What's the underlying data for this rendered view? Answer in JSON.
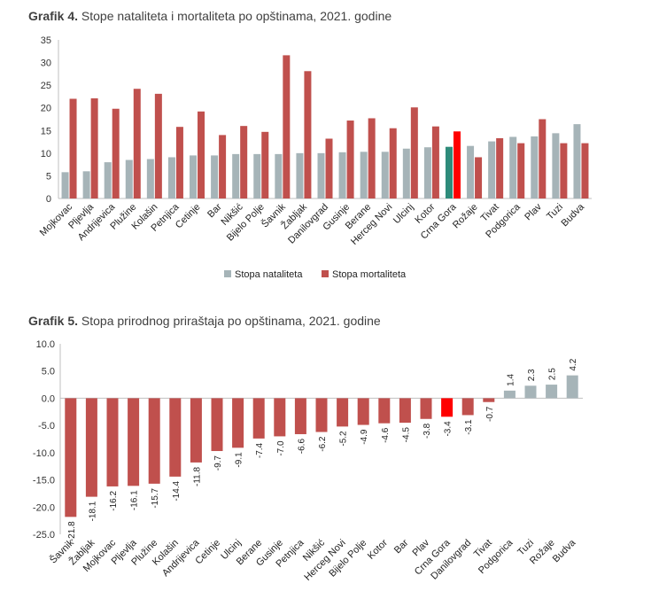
{
  "chart_data": [
    {
      "type": "bar",
      "title_prefix": "Grafik 4.",
      "title": "Stope nataliteta i mortaliteta po opštinama, 2021. godine",
      "categories": [
        "Mojkovac",
        "Pljevlja",
        "Andrijevica",
        "Plužine",
        "Kolašin",
        "Petnjica",
        "Cetinje",
        "Bar",
        "Nikšić",
        "Bijelo Polje",
        "Šavnik",
        "Žabljak",
        "Danilovgrad",
        "Gusinje",
        "Berane",
        "Herceg Novi",
        "Ulcinj",
        "Kotor",
        "Crna Gora",
        "Rožaje",
        "Tivat",
        "Podgorica",
        "Plav",
        "Tuzi",
        "Budva"
      ],
      "series": [
        {
          "name": "Stopa nataliteta",
          "color": "#a6b4b8",
          "values": [
            5.8,
            6.0,
            8.0,
            8.5,
            8.7,
            9.1,
            9.5,
            9.5,
            9.8,
            9.8,
            9.8,
            10.0,
            10.0,
            10.2,
            10.3,
            10.3,
            11.0,
            11.3,
            11.4,
            11.6,
            12.6,
            13.6,
            13.7,
            14.4,
            16.4
          ]
        },
        {
          "name": "Stopa mortaliteta",
          "color": "#c0504d",
          "values": [
            22.0,
            22.1,
            19.8,
            24.2,
            23.1,
            15.8,
            19.2,
            14.0,
            16.0,
            14.7,
            31.6,
            28.1,
            13.2,
            17.2,
            17.7,
            15.5,
            20.1,
            15.9,
            14.8,
            9.1,
            13.3,
            12.2,
            17.5,
            12.2,
            12.2
          ]
        }
      ],
      "highlight_category": "Crna Gora",
      "highlight_colors": {
        "natalitet": "#2e8b7a",
        "mortalitet": "#ff0000"
      },
      "yticks": [
        "0",
        "5",
        "10",
        "15",
        "20",
        "25",
        "30",
        "35"
      ],
      "ylim": [
        0,
        35
      ],
      "grid": false,
      "legend_position": "bottom"
    },
    {
      "type": "bar",
      "title_prefix": "Grafik 5.",
      "title": "Stopa prirodnog priraštaja po opštinama, 2021. godine",
      "categories": [
        "Šavnik",
        "Žabljak",
        "Mojkovac",
        "Pljevlja",
        "Plužine",
        "Kolašin",
        "Andrijevica",
        "Cetinje",
        "Ulcinj",
        "Berane",
        "Gusinje",
        "Petnjica",
        "Nikšić",
        "Herceg Novi",
        "Bijelo Polje",
        "Kotor",
        "Bar",
        "Plav",
        "Crna Gora",
        "Danilovgrad",
        "Tivat",
        "Podgorica",
        "Tuzi",
        "Rožaje",
        "Budva"
      ],
      "values": [
        -21.8,
        -18.1,
        -16.2,
        -16.1,
        -15.7,
        -14.4,
        -11.8,
        -9.7,
        -9.1,
        -7.4,
        -7.0,
        -6.6,
        -6.2,
        -5.2,
        -4.9,
        -4.6,
        -4.5,
        -3.8,
        -3.4,
        -3.1,
        -0.7,
        1.4,
        2.3,
        2.5,
        4.2
      ],
      "data_labels": [
        "-21.8",
        "-18.1",
        "-16.2",
        "-16.1",
        "-15.7",
        "-14.4",
        "-11.8",
        "-9.7",
        "-9.1",
        "-7.4",
        "-7.0",
        "-6.6",
        "-6.2",
        "-5.2",
        "-4.9",
        "-4.6",
        "-4.5",
        "-3.8",
        "-3.4",
        "-3.1",
        "-0.7",
        "1.4",
        "2.3",
        "2.5",
        "4.2"
      ],
      "colors": {
        "negative": "#c0504d",
        "positive": "#a6b4b8",
        "highlight": "#ff0000"
      },
      "highlight_category": "Crna Gora",
      "yticks": [
        "10.0",
        "5.0",
        "0.0",
        "-5.0",
        "-10.0",
        "-15.0",
        "-20.0",
        "-25.0"
      ],
      "ylim": [
        -25,
        10
      ],
      "grid": false
    }
  ]
}
